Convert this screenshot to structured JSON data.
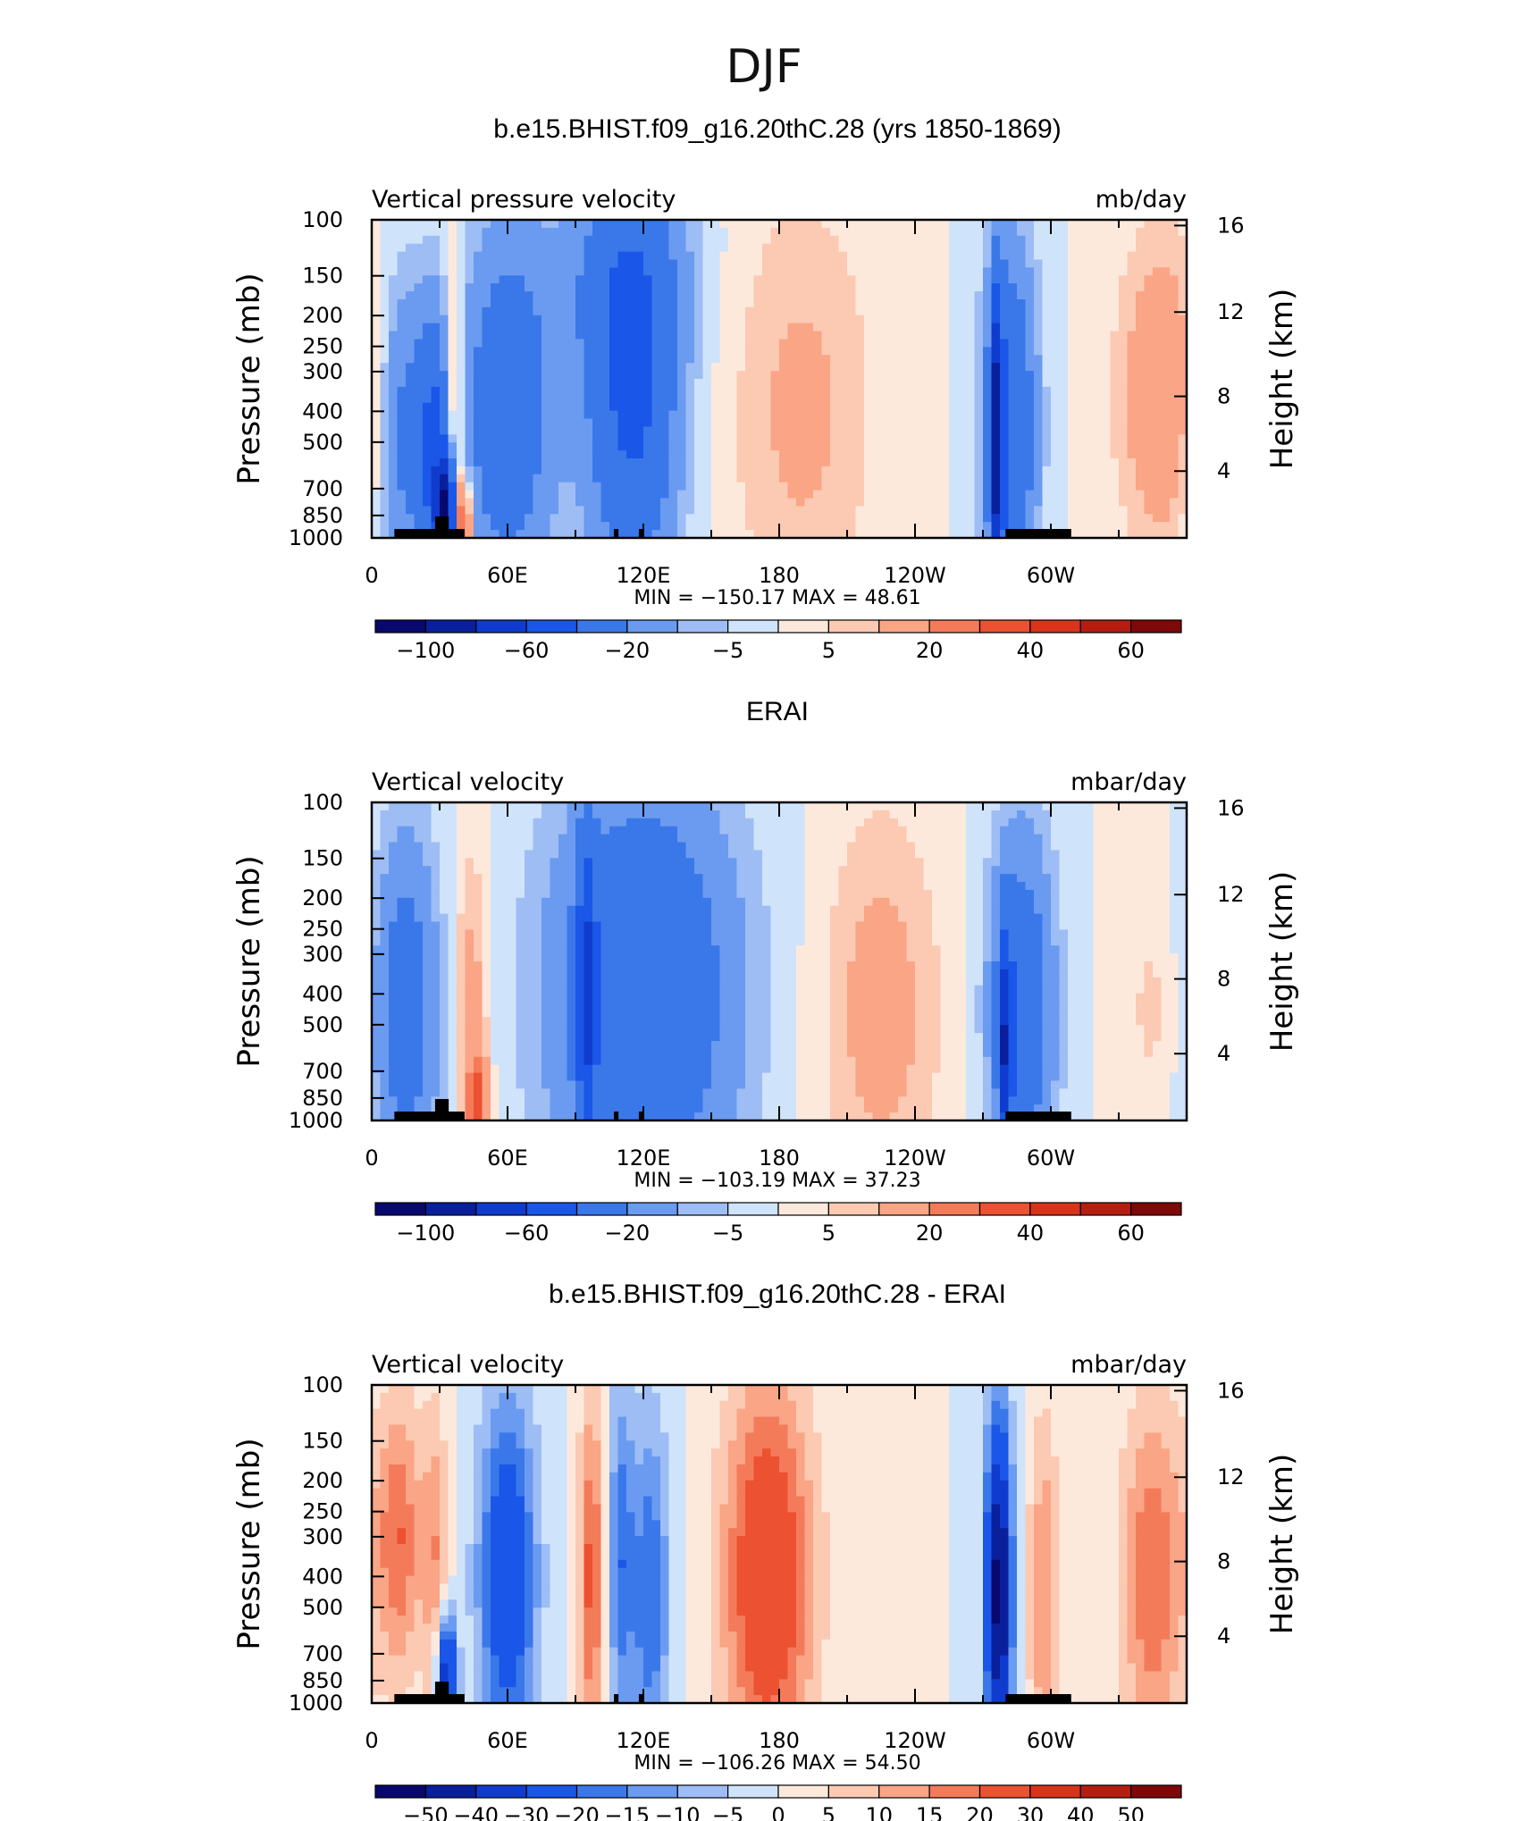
{
  "figure_title": "DJF",
  "colors": {
    "colorbar_abs": [
      "#08086e",
      "#0a1f9c",
      "#0f3ccf",
      "#1a56e8",
      "#3a78ea",
      "#6a9bf0",
      "#9dbdf4",
      "#cfe3fa",
      "#fde9dc",
      "#fcc9b2",
      "#f9a586",
      "#f47b5a",
      "#ec5131",
      "#d9341a",
      "#b61d11",
      "#7f0808"
    ],
    "colorbar_diff": [
      "#08086e",
      "#0a1f9c",
      "#0f3ccf",
      "#1a56e8",
      "#3a78ea",
      "#6a9bf0",
      "#9dbdf4",
      "#cfe3fa",
      "#fde9dc",
      "#fcc9b2",
      "#f9a586",
      "#f47b5a",
      "#ec5131",
      "#d9341a",
      "#b61d11",
      "#7f0808"
    ]
  },
  "chart_data": [
    {
      "type": "heatmap",
      "title": "b.e15.BHIST.f09_g16.20thC.28 (yrs 1850-1869)",
      "left_label": "Vertical pressure velocity",
      "right_label": "mb/day",
      "ylabel": "Pressure (mb)",
      "ylabel_right": "Height (km)",
      "x_ticks": [
        "0",
        "60E",
        "120E",
        "180",
        "120W",
        "60W"
      ],
      "y_ticks": [
        "100",
        "150",
        "200",
        "250",
        "300",
        "400",
        "500",
        "700",
        "850",
        "1000"
      ],
      "y_ticks_right": [
        "16",
        "12",
        "8",
        "4"
      ],
      "min_max": "MIN = −150.17   MAX =   48.61",
      "colorbar_labels": [
        "−100",
        "−60",
        "−20",
        "−5",
        "5",
        "20",
        "40",
        "60"
      ],
      "blobs": [
        {
          "lon": 12,
          "p": 450,
          "v": -25,
          "wl": 8,
          "wp": 0.8
        },
        {
          "lon": 28,
          "p": 550,
          "v": -45,
          "wl": 6,
          "wp": 0.7
        },
        {
          "lon": 36,
          "p": 450,
          "v": 28,
          "wl": 3,
          "wp": 0.8
        },
        {
          "lon": 40,
          "p": 900,
          "v": 40,
          "wl": 3,
          "wp": 0.25
        },
        {
          "lon": 33,
          "p": 800,
          "v": -90,
          "wl": 3,
          "wp": 0.25
        },
        {
          "lon": 60,
          "p": 400,
          "v": -35,
          "wl": 14,
          "wp": 0.9
        },
        {
          "lon": 115,
          "p": 350,
          "v": -45,
          "wl": 14,
          "wp": 1.0
        },
        {
          "lon": 110,
          "p": 150,
          "v": -15,
          "wl": 22,
          "wp": 0.5
        },
        {
          "lon": 190,
          "p": 400,
          "v": 12,
          "wl": 22,
          "wp": 1.1
        },
        {
          "lon": 282,
          "p": 450,
          "v": -40,
          "wl": 8,
          "wp": 0.9
        },
        {
          "lon": 276,
          "p": 500,
          "v": -70,
          "wl": 2,
          "wp": 0.8
        },
        {
          "lon": 350,
          "p": 350,
          "v": 20,
          "wl": 14,
          "wp": 0.8
        }
      ]
    },
    {
      "type": "heatmap",
      "title": "ERAI",
      "left_label": "Vertical velocity",
      "right_label": "mbar/day",
      "ylabel": "Pressure (mb)",
      "ylabel_right": "Height (km)",
      "x_ticks": [
        "0",
        "60E",
        "120E",
        "180",
        "120W",
        "60W"
      ],
      "y_ticks": [
        "100",
        "150",
        "200",
        "250",
        "300",
        "400",
        "500",
        "700",
        "850",
        "1000"
      ],
      "y_ticks_right": [
        "16",
        "12",
        "8",
        "4"
      ],
      "min_max": "MIN = −103.19   MAX =   37.23",
      "colorbar_labels": [
        "−100",
        "−60",
        "−20",
        "−5",
        "5",
        "20",
        "40",
        "60"
      ],
      "blobs": [
        {
          "lon": 15,
          "p": 450,
          "v": -30,
          "wl": 10,
          "wp": 0.9
        },
        {
          "lon": 44,
          "p": 450,
          "v": 15,
          "wl": 5,
          "wp": 0.8
        },
        {
          "lon": 47,
          "p": 900,
          "v": 30,
          "wl": 3,
          "wp": 0.25
        },
        {
          "lon": 120,
          "p": 400,
          "v": -40,
          "wl": 28,
          "wp": 1.1
        },
        {
          "lon": 95,
          "p": 400,
          "v": -45,
          "wl": 3,
          "wp": 0.8
        },
        {
          "lon": 225,
          "p": 450,
          "v": 14,
          "wl": 18,
          "wp": 1.0
        },
        {
          "lon": 287,
          "p": 450,
          "v": -35,
          "wl": 10,
          "wp": 0.9
        },
        {
          "lon": 280,
          "p": 600,
          "v": -60,
          "wl": 2,
          "wp": 0.6
        },
        {
          "lon": 345,
          "p": 450,
          "v": 6,
          "wl": 10,
          "wp": 0.7
        }
      ]
    },
    {
      "type": "heatmap",
      "title": "b.e15.BHIST.f09_g16.20thC.28 - ERAI",
      "left_label": "Vertical velocity",
      "right_label": "mbar/day",
      "ylabel": "Pressure (mb)",
      "ylabel_right": "Height (km)",
      "x_ticks": [
        "0",
        "60E",
        "120E",
        "180",
        "120W",
        "60W"
      ],
      "y_ticks": [
        "100",
        "150",
        "200",
        "250",
        "300",
        "400",
        "500",
        "700",
        "850",
        "1000"
      ],
      "y_ticks_right": [
        "16",
        "12",
        "8",
        "4"
      ],
      "min_max": "MIN = −106.26   MAX =   54.50",
      "colorbar_labels": [
        "−50",
        "−40",
        "−30",
        "−20",
        "−15",
        "−10",
        "−5",
        "0",
        "5",
        "10",
        "15",
        "20",
        "30",
        "40",
        "50"
      ],
      "blobs": [
        {
          "lon": 12,
          "p": 300,
          "v": 20,
          "wl": 7,
          "wp": 0.7
        },
        {
          "lon": 28,
          "p": 350,
          "v": 14,
          "wl": 4,
          "wp": 0.8
        },
        {
          "lon": 33,
          "p": 800,
          "v": -40,
          "wl": 3,
          "wp": 0.3
        },
        {
          "lon": 60,
          "p": 400,
          "v": -30,
          "wl": 9,
          "wp": 0.9
        },
        {
          "lon": 97,
          "p": 400,
          "v": 22,
          "wl": 4,
          "wp": 0.9
        },
        {
          "lon": 110,
          "p": 350,
          "v": -18,
          "wl": 4,
          "wp": 0.9
        },
        {
          "lon": 123,
          "p": 450,
          "v": -20,
          "wl": 6,
          "wp": 0.9
        },
        {
          "lon": 175,
          "p": 400,
          "v": 30,
          "wl": 14,
          "wp": 1.0
        },
        {
          "lon": 277,
          "p": 450,
          "v": -55,
          "wl": 4,
          "wp": 0.9
        },
        {
          "lon": 297,
          "p": 450,
          "v": 15,
          "wl": 5,
          "wp": 0.9
        },
        {
          "lon": 345,
          "p": 400,
          "v": 20,
          "wl": 10,
          "wp": 0.9
        }
      ]
    }
  ]
}
